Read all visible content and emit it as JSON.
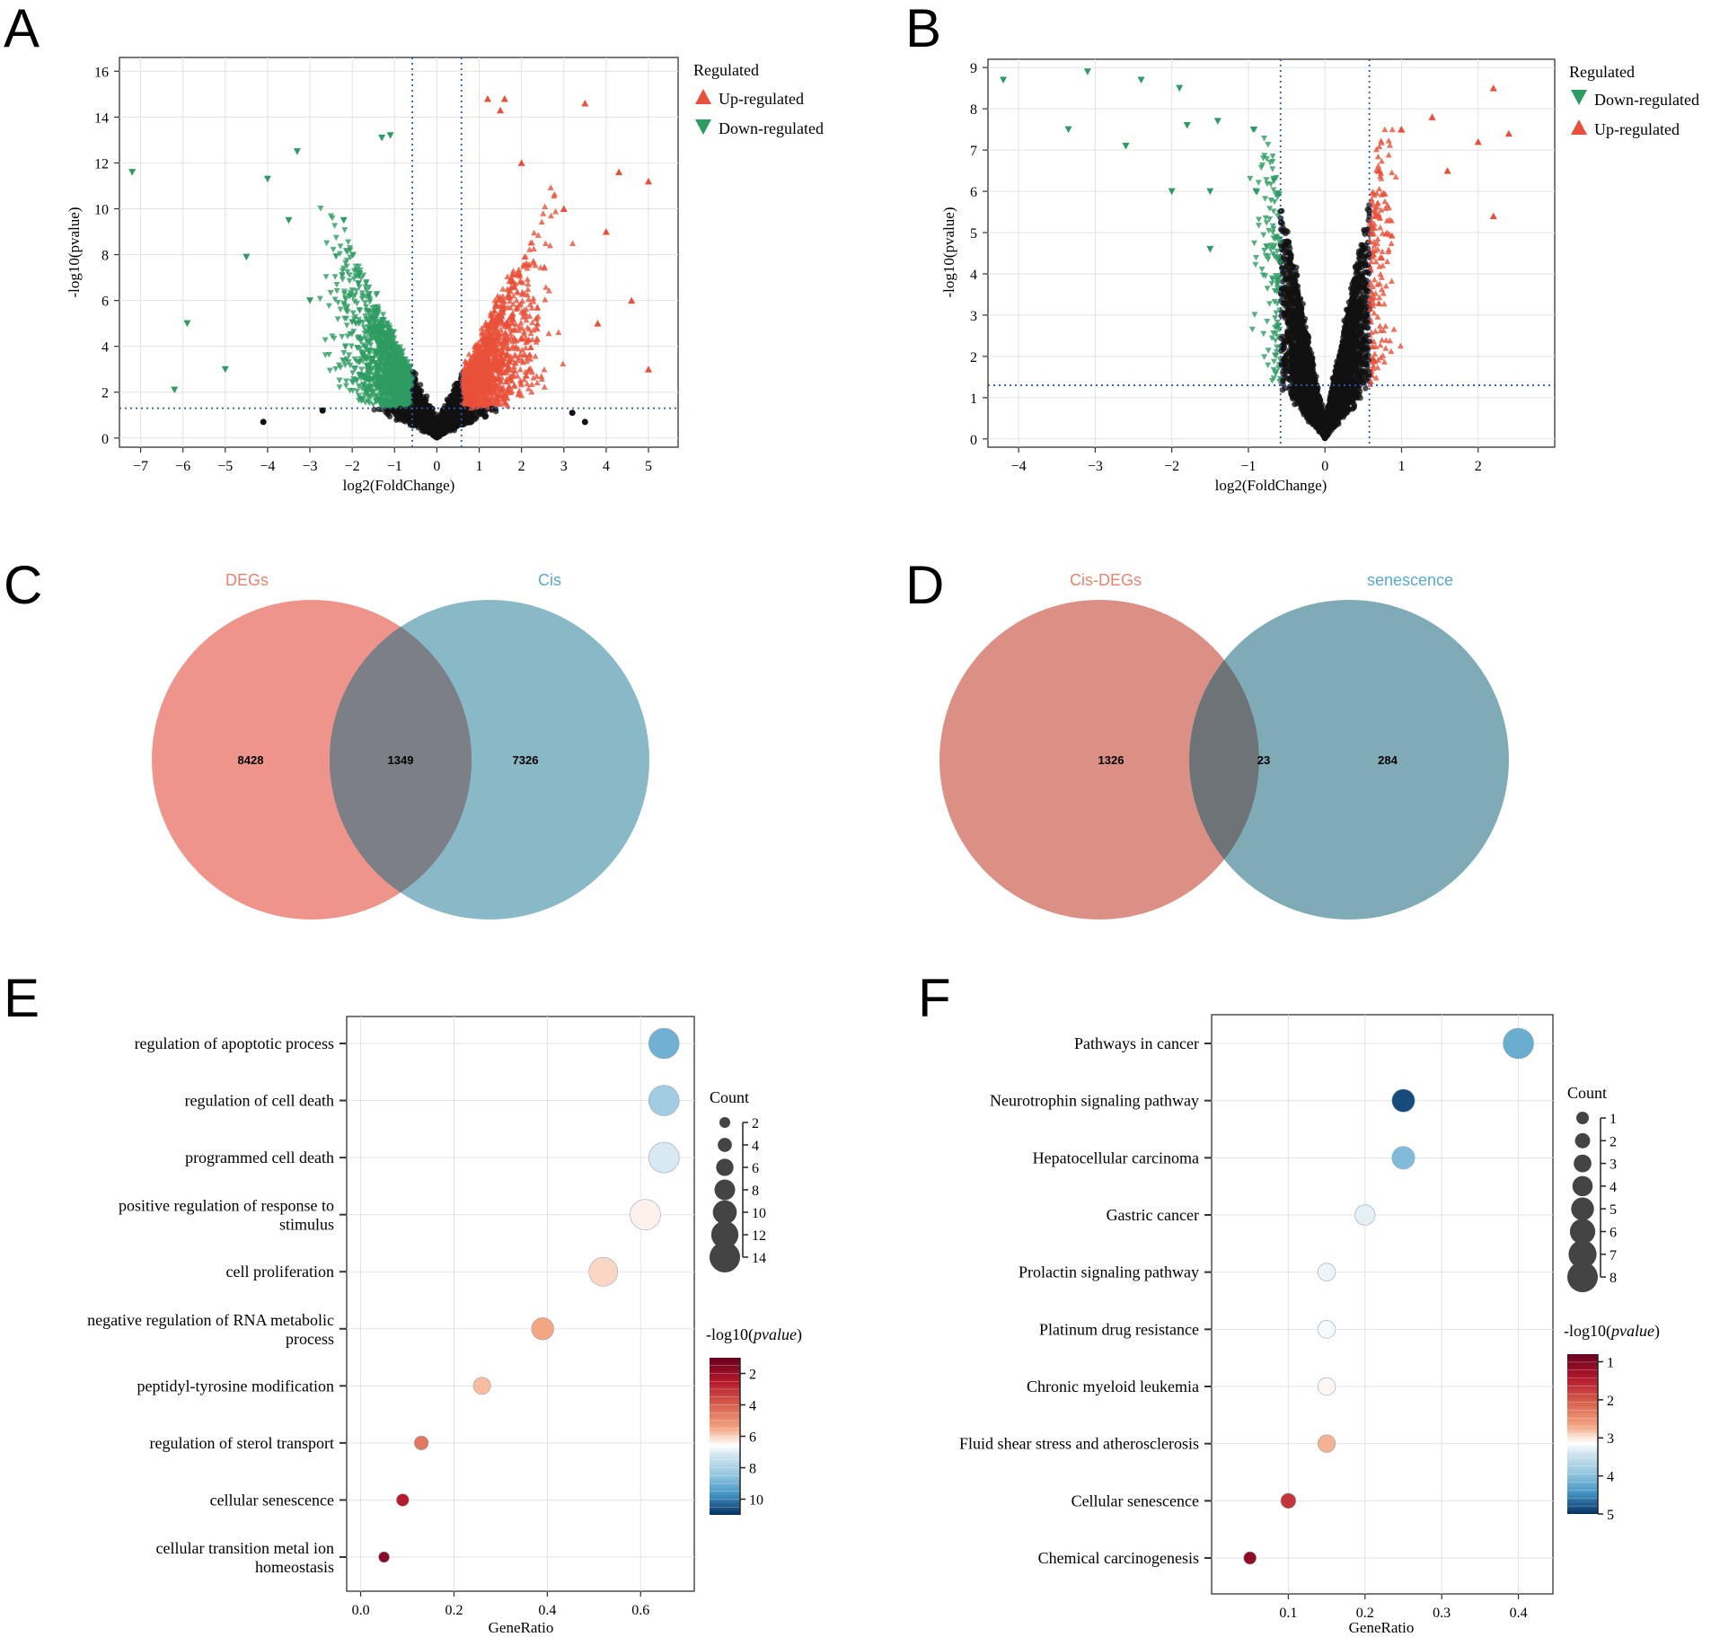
{
  "panel_labels": [
    "A",
    "B",
    "C",
    "D",
    "E",
    "F"
  ],
  "chart_data": [
    {
      "panel": "A",
      "type": "scatter",
      "subtype": "volcano",
      "xlabel": "log2(FoldChange)",
      "ylabel": "-log10(pvalue)",
      "xlim": [
        -7.5,
        5.7
      ],
      "ylim": [
        -0.4,
        16.6
      ],
      "xticks": [
        -7,
        -6,
        -5,
        -4,
        -3,
        -2,
        -1,
        0,
        1,
        2,
        3,
        4,
        5
      ],
      "yticks": [
        0,
        2,
        4,
        6,
        8,
        10,
        12,
        14,
        16
      ],
      "thresholds": {
        "fc": 0.58,
        "p": 1.3
      },
      "legend": {
        "title": "Regulated",
        "position": "top-right-outside",
        "entries": [
          "Up-regulated",
          "Down-regulated"
        ]
      },
      "series": [
        {
          "name": "Up-regulated",
          "color": "#e8503a",
          "marker": "triangle-up",
          "points": [
            [
              1.2,
              14.8
            ],
            [
              1.6,
              14.8
            ],
            [
              1.5,
              14.3
            ],
            [
              2.0,
              12.0
            ],
            [
              3.5,
              14.6
            ],
            [
              4.3,
              11.6
            ],
            [
              5.0,
              11.2
            ],
            [
              3.0,
              10.0
            ],
            [
              4.0,
              9.0
            ],
            [
              4.6,
              6.0
            ],
            [
              5.0,
              3.0
            ],
            [
              3.8,
              5.0
            ]
          ]
        },
        {
          "name": "Down-regulated",
          "color": "#2e9b62",
          "marker": "triangle-down",
          "points": [
            [
              -7.2,
              11.6
            ],
            [
              -5.9,
              5.0
            ],
            [
              -6.2,
              2.1
            ],
            [
              -4.5,
              7.9
            ],
            [
              -4.0,
              11.3
            ],
            [
              -3.3,
              12.5
            ],
            [
              -3.5,
              9.5
            ],
            [
              -2.2,
              9.5
            ],
            [
              -1.3,
              13.1
            ],
            [
              -1.1,
              13.2
            ],
            [
              -5.0,
              3.0
            ],
            [
              -3.0,
              6.0
            ]
          ]
        },
        {
          "name": "Not significant",
          "color": "#111111",
          "marker": "circle",
          "points": [
            [
              -4.1,
              0.7
            ],
            [
              3.5,
              0.7
            ],
            [
              -2.7,
              1.2
            ],
            [
              3.2,
              1.1
            ]
          ]
        }
      ]
    },
    {
      "panel": "B",
      "type": "scatter",
      "subtype": "volcano",
      "xlabel": "log2(FoldChange)",
      "ylabel": "-log10(pvalue)",
      "xlim": [
        -4.4,
        3.0
      ],
      "ylim": [
        -0.2,
        9.2
      ],
      "xticks": [
        -4,
        -3,
        -2,
        -1,
        0,
        1,
        2
      ],
      "yticks": [
        0,
        1,
        2,
        3,
        4,
        5,
        6,
        7,
        8,
        9
      ],
      "thresholds": {
        "fc": 0.58,
        "p": 1.3
      },
      "legend": {
        "title": "Regulated",
        "position": "top-right-outside",
        "entries": [
          "Down-regulated",
          "Up-regulated"
        ]
      },
      "series": [
        {
          "name": "Down-regulated",
          "color": "#2e9b62",
          "marker": "triangle-down",
          "points": [
            [
              -4.2,
              8.7
            ],
            [
              -3.1,
              8.9
            ],
            [
              -3.35,
              7.5
            ],
            [
              -2.4,
              8.7
            ],
            [
              -2.6,
              7.1
            ],
            [
              -1.9,
              8.5
            ],
            [
              -1.8,
              7.6
            ],
            [
              -1.4,
              7.7
            ],
            [
              -1.5,
              6.0
            ],
            [
              -2.0,
              6.0
            ],
            [
              -1.5,
              4.6
            ],
            [
              -0.9,
              6.0
            ]
          ]
        },
        {
          "name": "Up-regulated",
          "color": "#e8503a",
          "marker": "triangle-up",
          "points": [
            [
              2.2,
              8.5
            ],
            [
              2.4,
              7.4
            ],
            [
              2.0,
              7.2
            ],
            [
              2.2,
              5.4
            ],
            [
              1.6,
              6.5
            ],
            [
              1.0,
              7.5
            ],
            [
              1.4,
              7.8
            ],
            [
              0.7,
              6.5
            ]
          ]
        },
        {
          "name": "Not significant",
          "color": "#111111",
          "marker": "circle",
          "points": []
        }
      ]
    },
    {
      "panel": "C",
      "type": "venn",
      "sets": [
        {
          "name": "DEGs",
          "color": "#ee8b80"
        },
        {
          "name": "Cis",
          "color": "#7fb3c2"
        }
      ],
      "counts": {
        "left_only": 8428,
        "overlap": 1349,
        "right_only": 7326
      }
    },
    {
      "panel": "D",
      "type": "venn",
      "sets": [
        {
          "name": "Cis-DEGs",
          "color": "#d9857b"
        },
        {
          "name": "senescence",
          "color": "#74a4b1"
        }
      ],
      "counts": {
        "left_only": 1326,
        "overlap": 23,
        "right_only": 284
      }
    },
    {
      "panel": "E",
      "type": "scatter",
      "subtype": "dotplot",
      "xlabel": "GeneRatio",
      "xlim": [
        -0.03,
        0.715
      ],
      "xticks": [
        0.0,
        0.2,
        0.4,
        0.6
      ],
      "categories": [
        "regulation of apoptotic process",
        "regulation of cell death",
        "programmed cell death",
        "positive regulation of response to stimulus",
        "cell proliferation",
        "negative regulation of RNA metabolic process",
        "peptidyl-tyrosine modification",
        "regulation of sterol transport",
        "cellular senescence",
        "cellular transition metal ion homeostasis"
      ],
      "gene_ratio": [
        0.65,
        0.65,
        0.65,
        0.61,
        0.52,
        0.39,
        0.26,
        0.13,
        0.09,
        0.05
      ],
      "count": [
        14,
        14,
        14,
        14,
        13,
        9,
        6,
        4,
        3,
        2
      ],
      "neg_log10_pvalue": [
        9.0,
        8.2,
        7.1,
        6.4,
        6.05,
        5.5,
        5.75,
        4.5,
        2.6,
        1.7
      ],
      "size_legend": {
        "title": "Count",
        "values": [
          2,
          4,
          6,
          8,
          10,
          12,
          14
        ]
      },
      "color_legend": {
        "title": "-log10(",
        "title_italic": "pvalue",
        "title_end": ")",
        "ticks": [
          2,
          4,
          6,
          8,
          10
        ],
        "range": [
          1,
          11
        ]
      }
    },
    {
      "panel": "F",
      "type": "scatter",
      "subtype": "dotplot",
      "xlabel": "GeneRatio",
      "xlim": [
        0.0,
        0.445
      ],
      "xticks": [
        0.1,
        0.2,
        0.3,
        0.4
      ],
      "categories": [
        "Pathways in cancer",
        "Neurotrophin signaling pathway",
        "Hepatocellular carcinoma",
        "Gastric cancer",
        "Prolactin signaling pathway",
        "Platinum drug resistance",
        "Chronic myeloid leukemia",
        "Fluid shear stress and atherosclerosis",
        "Cellular senescence",
        "Chemical carcinogenesis"
      ],
      "gene_ratio": [
        0.4,
        0.25,
        0.25,
        0.2,
        0.15,
        0.15,
        0.15,
        0.15,
        0.1,
        0.05
      ],
      "count": [
        8,
        5,
        5,
        4,
        3,
        3,
        3,
        3,
        2,
        1
      ],
      "neg_log10_pvalue": [
        4.2,
        4.85,
        4.05,
        3.3,
        3.25,
        3.2,
        3.1,
        2.75,
        1.7,
        1.15
      ],
      "size_legend": {
        "title": "Count",
        "values": [
          1,
          2,
          3,
          4,
          5,
          6,
          7,
          8
        ]
      },
      "color_legend": {
        "title": "-log10(",
        "title_italic": "pvalue",
        "title_end": ")",
        "ticks": [
          1,
          2,
          3,
          4,
          5
        ],
        "range": [
          0.8,
          5.0
        ]
      }
    }
  ]
}
